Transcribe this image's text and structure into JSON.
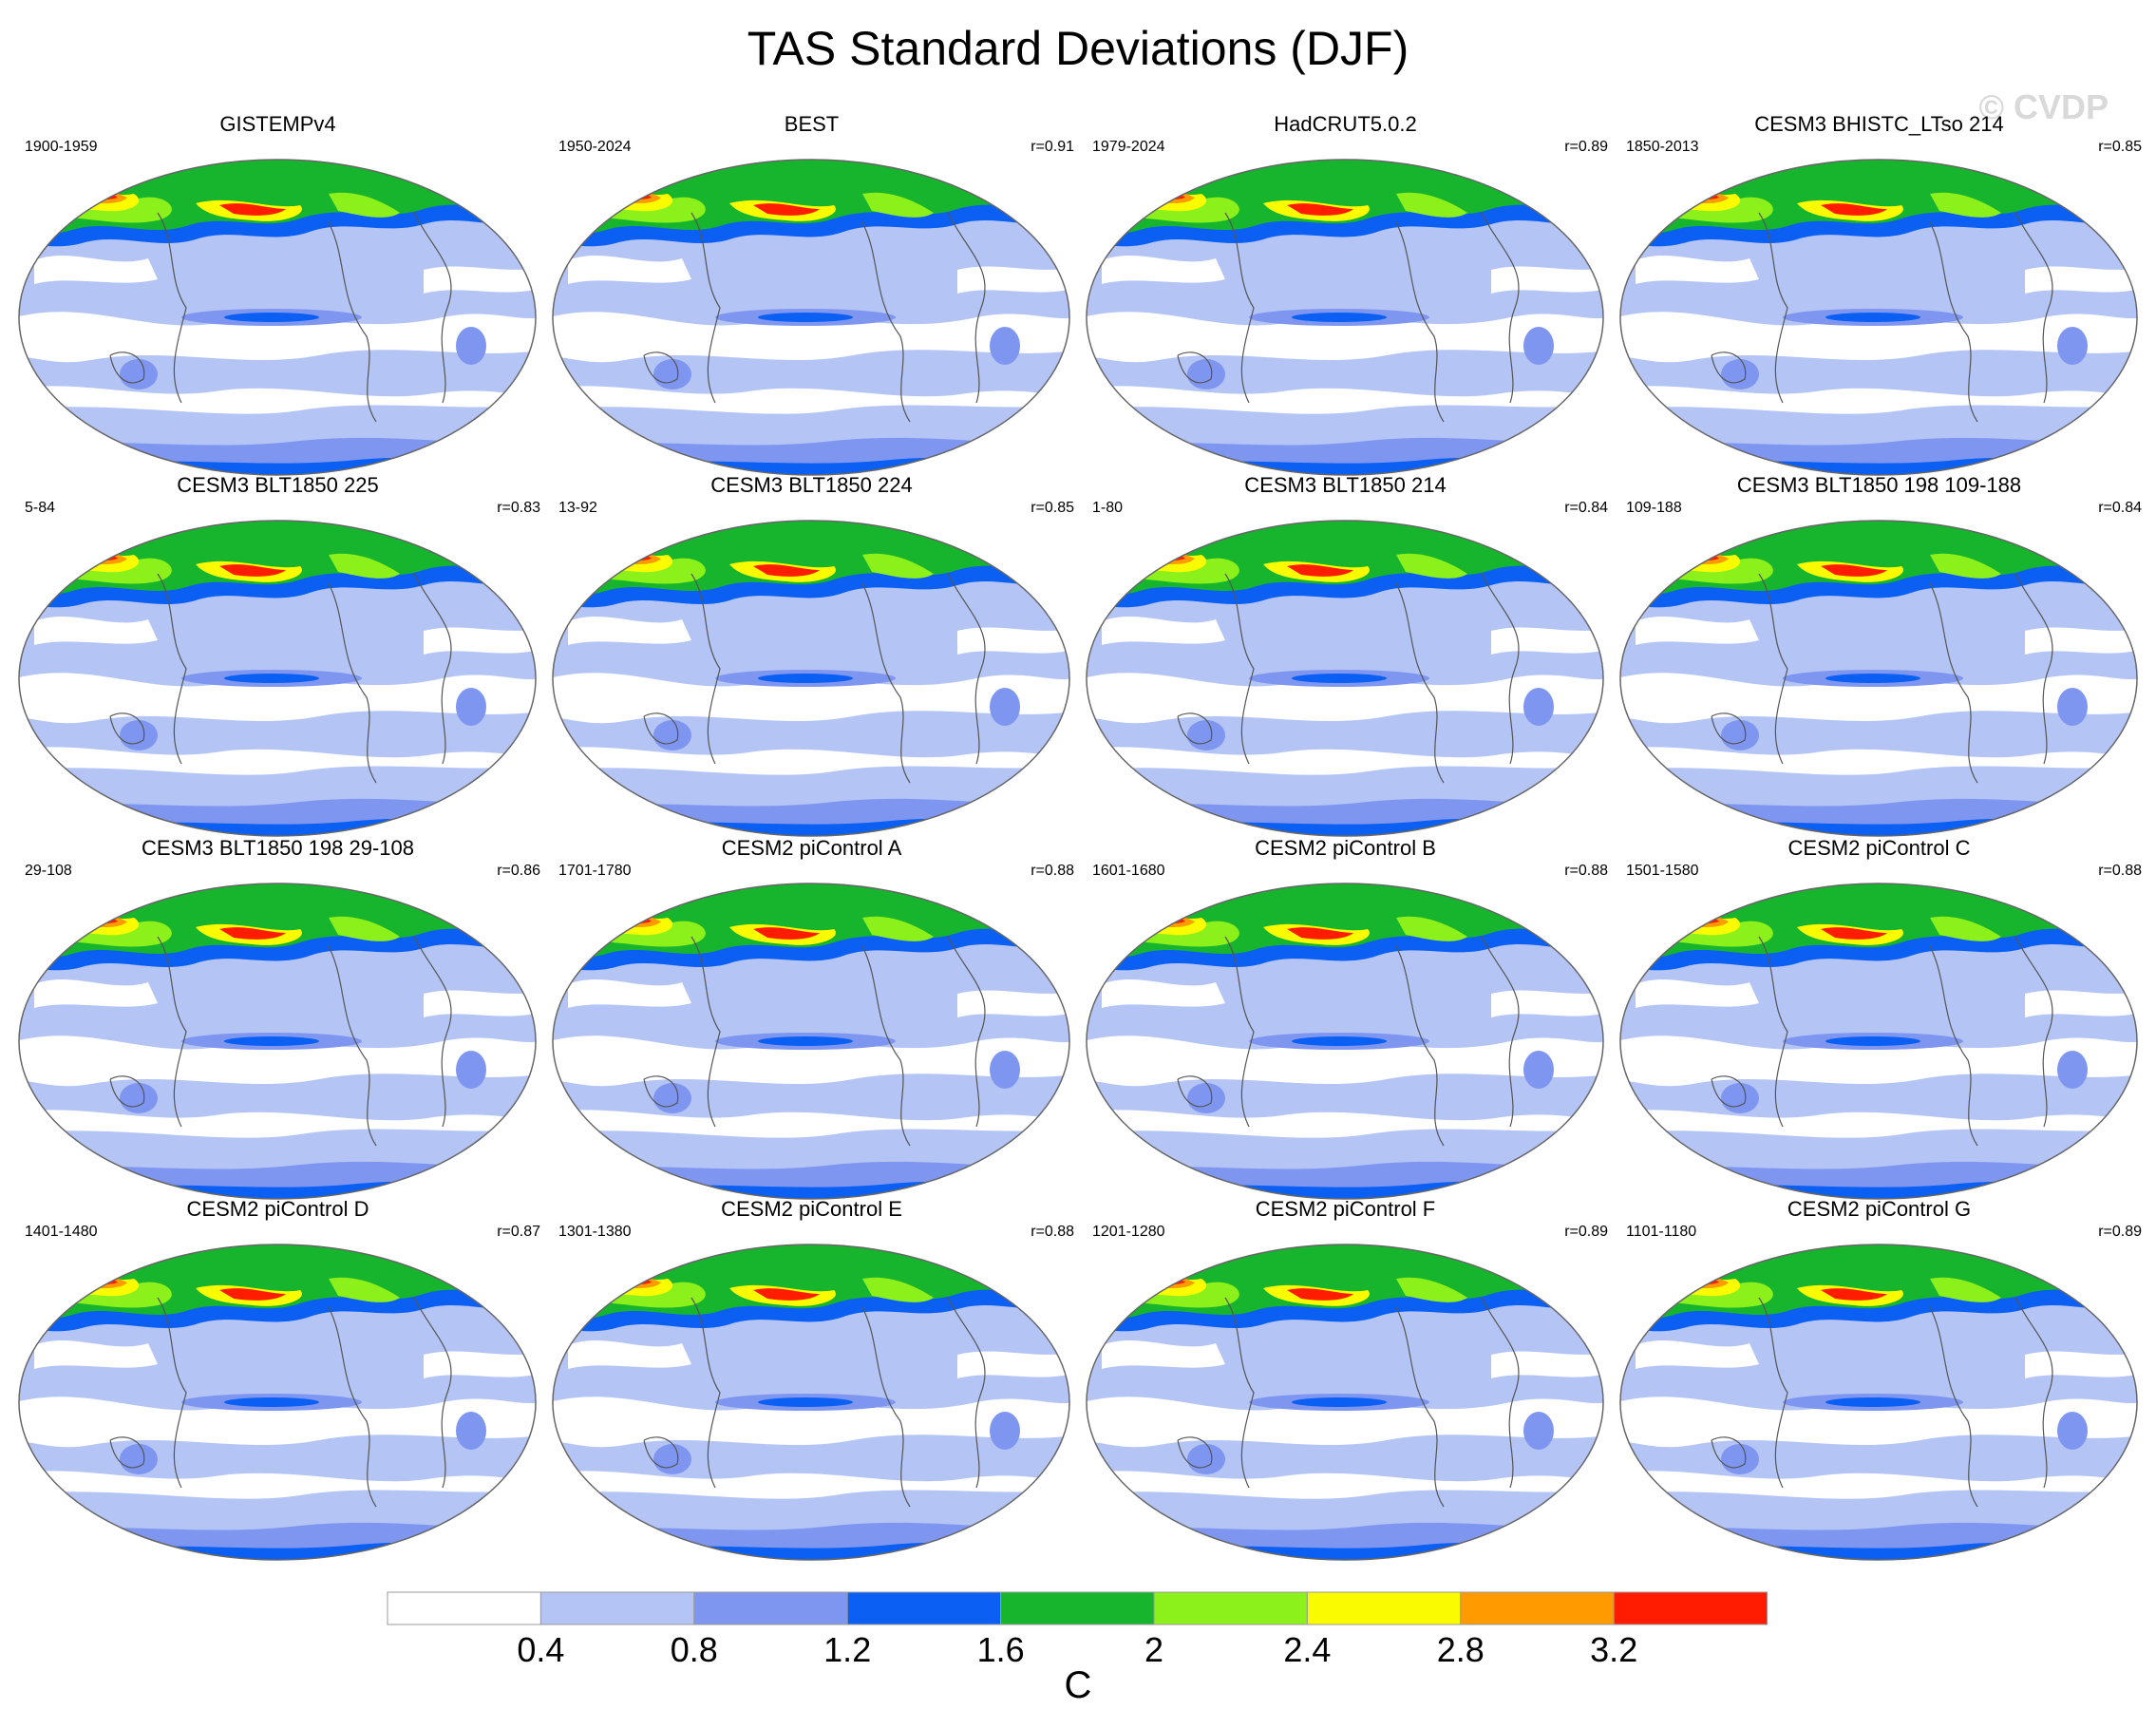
{
  "title": "TAS Standard Deviations (DJF)",
  "watermark": "© CVDP",
  "chart_data": {
    "type": "heatmap",
    "title": "TAS Standard Deviations (DJF)",
    "projection": "global ellipse (Robinson-like), Pacific-centered",
    "colorbar": {
      "label": "C",
      "boundaries": [
        0.4,
        0.8,
        1.2,
        1.6,
        2,
        2.4,
        2.8,
        3.2
      ],
      "tick_labels": [
        "0.4",
        "0.8",
        "1.2",
        "1.6",
        "2",
        "2.4",
        "2.8",
        "3.2"
      ],
      "colors": [
        "#ffffff",
        "#b3c4f5",
        "#7f96f0",
        "#0b5ff2",
        "#17b42e",
        "#8cf01b",
        "#fbfb00",
        "#ff9a00",
        "#ff1c00"
      ]
    },
    "panels": [
      {
        "title": "GISTEMPv4",
        "period": "1900-1959",
        "r": ""
      },
      {
        "title": "BEST",
        "period": "1950-2024",
        "r": "r=0.91"
      },
      {
        "title": "HadCRUT5.0.2",
        "period": "1979-2024",
        "r": "r=0.89"
      },
      {
        "title": "CESM3 BHISTC_LTso 214",
        "period": "1850-2013",
        "r": "r=0.85"
      },
      {
        "title": "CESM3 BLT1850 225",
        "period": "5-84",
        "r": "r=0.83"
      },
      {
        "title": "CESM3 BLT1850 224",
        "period": "13-92",
        "r": "r=0.85"
      },
      {
        "title": "CESM3 BLT1850 214",
        "period": "1-80",
        "r": "r=0.84"
      },
      {
        "title": "CESM3 BLT1850 198 109-188",
        "period": "109-188",
        "r": "r=0.84"
      },
      {
        "title": "CESM3 BLT1850 198 29-108",
        "period": "29-108",
        "r": "r=0.86"
      },
      {
        "title": "CESM2 piControl A",
        "period": "1701-1780",
        "r": "r=0.88"
      },
      {
        "title": "CESM2 piControl B",
        "period": "1601-1680",
        "r": "r=0.88"
      },
      {
        "title": "CESM2 piControl C",
        "period": "1501-1580",
        "r": "r=0.88"
      },
      {
        "title": "CESM2 piControl D",
        "period": "1401-1480",
        "r": "r=0.87"
      },
      {
        "title": "CESM2 piControl E",
        "period": "1301-1380",
        "r": "r=0.88"
      },
      {
        "title": "CESM2 piControl F",
        "period": "1201-1280",
        "r": "r=0.89"
      },
      {
        "title": "CESM2 piControl G",
        "period": "1101-1180",
        "r": "r=0.89"
      }
    ]
  }
}
